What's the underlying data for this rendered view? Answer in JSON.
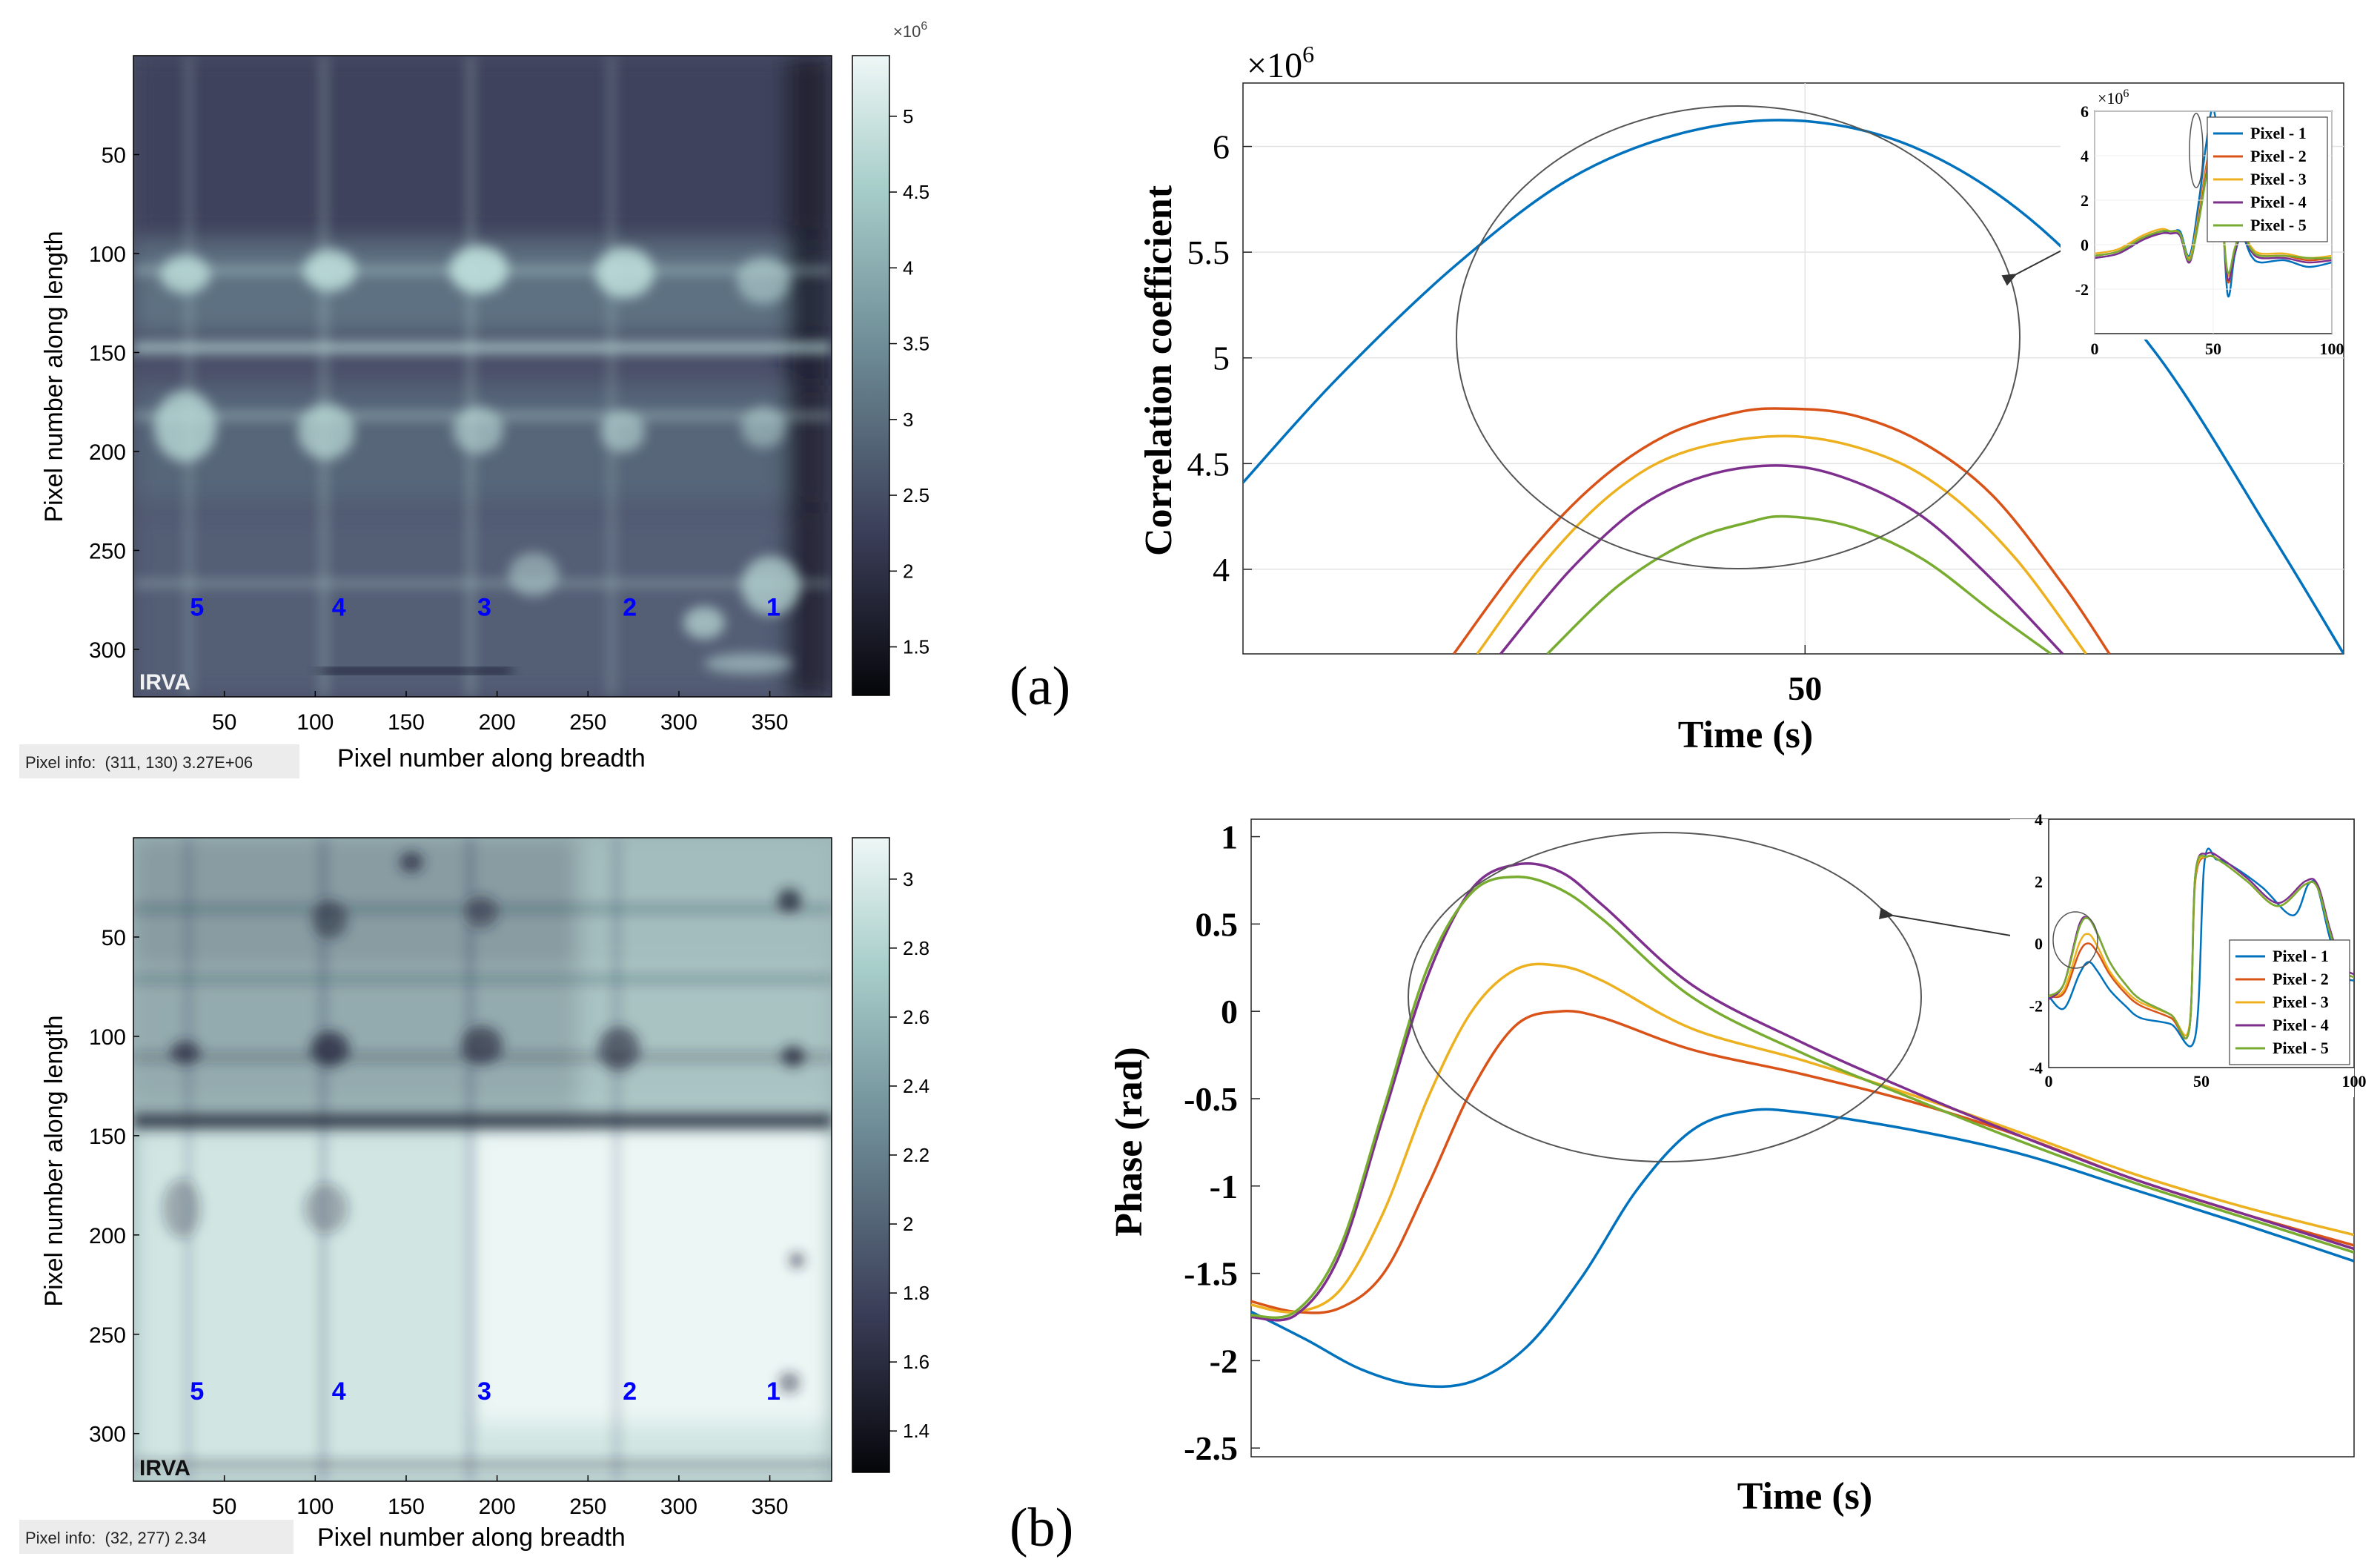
{
  "panel_labels": {
    "a": "(a)",
    "b": "(b)"
  },
  "colors": {
    "pixel1": "#0072BD",
    "pixel2": "#D95319",
    "pixel3": "#EDB120",
    "pixel4": "#7E2F8E",
    "pixel5": "#77AC30",
    "marker": "#0000FF"
  },
  "thermogram_a": {
    "ylabel": "Pixel number along length",
    "xlabel": "Pixel number along breadth",
    "yticks": [
      "50",
      "100",
      "150",
      "200",
      "250",
      "300"
    ],
    "xticks": [
      "50",
      "100",
      "150",
      "200",
      "250",
      "300",
      "350"
    ],
    "colorbar_exponent": "×10",
    "colorbar_exponent_power": "6",
    "colorbar_ticks": [
      "5",
      "4.5",
      "4",
      "3.5",
      "3",
      "2.5",
      "2",
      "1.5"
    ],
    "markers": [
      "5",
      "4",
      "3",
      "2",
      "1"
    ],
    "corner_label": "IRVA",
    "pixel_info_label": "Pixel info:",
    "pixel_info_value": "(311, 130)  3.27E+06"
  },
  "thermogram_b": {
    "ylabel": "Pixel number along length",
    "xlabel": "Pixel number along breadth",
    "yticks": [
      "50",
      "100",
      "150",
      "200",
      "250",
      "300"
    ],
    "xticks": [
      "50",
      "100",
      "150",
      "200",
      "250",
      "300",
      "350"
    ],
    "colorbar_ticks": [
      "3",
      "2.8",
      "2.6",
      "2.4",
      "2.2",
      "2",
      "1.8",
      "1.6",
      "1.4"
    ],
    "markers": [
      "5",
      "4",
      "3",
      "2",
      "1"
    ],
    "corner_label": "IRVA",
    "pixel_info_label": "Pixel info:",
    "pixel_info_value": "(32, 277)  2.34"
  },
  "chart_data": [
    {
      "type": "line",
      "panel": "a",
      "title": "",
      "xlabel": "Time (s)",
      "ylabel": "Correlation coefficient",
      "y_exponent": "×10",
      "y_exponent_power": "6",
      "xlim": [
        47.6,
        52.3
      ],
      "ylim": [
        3.6,
        6.3
      ],
      "xticks": [
        50
      ],
      "yticks": [
        4,
        4.5,
        5,
        5.5,
        6
      ],
      "ytick_labels": [
        "4",
        "4.5",
        "5",
        "5.5",
        "6"
      ],
      "grid": true,
      "series": [
        {
          "name": "Pixel - 1",
          "color_key": "pixel1",
          "x": [
            47.6,
            48.0,
            48.5,
            49.0,
            49.5,
            50.0,
            50.5,
            51.0,
            51.5,
            52.0,
            52.3
          ],
          "y": [
            4.41,
            4.9,
            5.43,
            5.85,
            6.07,
            6.12,
            5.98,
            5.62,
            5.02,
            4.15,
            3.6
          ]
        },
        {
          "name": "Pixel - 2",
          "color_key": "pixel2",
          "x": [
            48.5,
            48.8,
            49.1,
            49.4,
            49.7,
            49.92,
            50.2,
            50.5,
            50.8,
            51.1,
            51.3
          ],
          "y": [
            3.6,
            4.05,
            4.4,
            4.63,
            4.74,
            4.76,
            4.73,
            4.6,
            4.35,
            3.93,
            3.6
          ]
        },
        {
          "name": "Pixel - 3",
          "color_key": "pixel3",
          "x": [
            48.6,
            48.9,
            49.2,
            49.5,
            49.92,
            50.3,
            50.6,
            50.9,
            51.2
          ],
          "y": [
            3.6,
            4.05,
            4.38,
            4.56,
            4.63,
            4.55,
            4.37,
            4.05,
            3.6
          ]
        },
        {
          "name": "Pixel - 4",
          "color_key": "pixel4",
          "x": [
            48.7,
            49.0,
            49.3,
            49.6,
            49.92,
            50.2,
            50.5,
            50.8,
            51.1
          ],
          "y": [
            3.6,
            4.0,
            4.3,
            4.45,
            4.49,
            4.42,
            4.25,
            3.95,
            3.6
          ]
        },
        {
          "name": "Pixel - 5",
          "color_key": "pixel5",
          "x": [
            48.9,
            49.2,
            49.5,
            49.75,
            49.92,
            50.2,
            50.5,
            50.8,
            51.05
          ],
          "y": [
            3.6,
            3.92,
            4.13,
            4.22,
            4.25,
            4.2,
            4.05,
            3.8,
            3.6
          ]
        }
      ],
      "inset": {
        "y_exponent": "×10",
        "y_exponent_power": "6",
        "xlim": [
          0,
          100
        ],
        "ylim": [
          -4,
          6
        ],
        "xticks": [
          0,
          50,
          100
        ],
        "yticks": [
          -2,
          0,
          2,
          4,
          6
        ],
        "legend": [
          "Pixel - 1",
          "Pixel - 2",
          "Pixel - 3",
          "Pixel - 4",
          "Pixel - 5"
        ],
        "series": [
          {
            "x": [
              0,
              10,
              20,
              28,
              32,
              36,
              40,
              44,
              47,
              50,
              53,
              56,
              59,
              62,
              66,
              70,
              80,
              90,
              100
            ],
            "y": [
              -0.6,
              -0.4,
              0.2,
              0.6,
              0.5,
              0.6,
              -0.5,
              2.0,
              4.5,
              6.1,
              3.5,
              -2.2,
              -0.5,
              0.4,
              -0.5,
              -0.8,
              -0.7,
              -1.0,
              -0.8
            ]
          },
          {
            "x": [
              0,
              10,
              20,
              28,
              32,
              36,
              40,
              44,
              47,
              50,
              53,
              56,
              59,
              62,
              66,
              70,
              80,
              90,
              100
            ],
            "y": [
              -0.5,
              -0.3,
              0.3,
              0.6,
              0.6,
              0.5,
              -0.7,
              1.5,
              3.5,
              4.8,
              2.8,
              -1.6,
              -0.3,
              0.6,
              -0.2,
              -0.5,
              -0.5,
              -0.7,
              -0.6
            ]
          },
          {
            "x": [
              0,
              10,
              20,
              28,
              32,
              36,
              40,
              44,
              47,
              50,
              53,
              56,
              59,
              62,
              66,
              70,
              80,
              90,
              100
            ],
            "y": [
              -0.4,
              -0.2,
              0.4,
              0.7,
              0.6,
              0.5,
              -0.6,
              1.4,
              3.3,
              4.6,
              2.6,
              -1.3,
              -0.2,
              0.7,
              -0.1,
              -0.4,
              -0.4,
              -0.6,
              -0.5
            ]
          },
          {
            "x": [
              0,
              10,
              20,
              28,
              32,
              36,
              40,
              44,
              47,
              50,
              53,
              56,
              59,
              62,
              66,
              70,
              80,
              90,
              100
            ],
            "y": [
              -0.6,
              -0.4,
              0.2,
              0.5,
              0.5,
              0.4,
              -0.8,
              1.2,
              3.1,
              4.5,
              2.4,
              -1.5,
              -0.4,
              0.5,
              -0.3,
              -0.6,
              -0.6,
              -0.8,
              -0.7
            ]
          },
          {
            "x": [
              0,
              10,
              20,
              28,
              32,
              36,
              40,
              44,
              47,
              50,
              53,
              56,
              59,
              62,
              66,
              70,
              80,
              90,
              100
            ],
            "y": [
              -0.5,
              -0.3,
              0.3,
              0.6,
              0.6,
              0.5,
              -0.7,
              1.1,
              3.0,
              4.2,
              2.2,
              -1.2,
              -0.2,
              0.6,
              -0.2,
              -0.5,
              -0.5,
              -0.6,
              -0.6
            ]
          }
        ]
      }
    },
    {
      "type": "line",
      "panel": "b",
      "title": "",
      "xlabel": "Time (s)",
      "ylabel": "Phase (rad)",
      "xlim": [
        0,
        1
      ],
      "ylim": [
        -2.55,
        1.1
      ],
      "yticks": [
        -2.5,
        -2,
        -1.5,
        -1,
        -0.5,
        0,
        0.5,
        1
      ],
      "ytick_labels": [
        "-2.5",
        "-2",
        "-1.5",
        "-1",
        "-0.5",
        "0",
        "0.5",
        "1"
      ],
      "grid": false,
      "series": [
        {
          "name": "Pixel - 1",
          "color_key": "pixel1",
          "x": [
            0.0,
            0.05,
            0.1,
            0.15,
            0.2,
            0.25,
            0.3,
            0.35,
            0.4,
            0.45,
            0.5,
            0.6,
            0.7,
            0.8,
            0.9,
            1.0
          ],
          "y": [
            -1.72,
            -1.88,
            -2.05,
            -2.14,
            -2.12,
            -1.92,
            -1.52,
            -1.02,
            -0.68,
            -0.57,
            -0.58,
            -0.68,
            -0.82,
            -1.02,
            -1.22,
            -1.43
          ]
        },
        {
          "name": "Pixel - 2",
          "color_key": "pixel2",
          "x": [
            0.0,
            0.04,
            0.08,
            0.12,
            0.16,
            0.2,
            0.24,
            0.28,
            0.32,
            0.4,
            0.5,
            0.6,
            0.7,
            0.8,
            0.9,
            1.0
          ],
          "y": [
            -1.66,
            -1.72,
            -1.7,
            -1.5,
            -1.0,
            -0.45,
            -0.08,
            0.0,
            -0.04,
            -0.22,
            -0.36,
            -0.52,
            -0.72,
            -0.96,
            -1.16,
            -1.34
          ]
        },
        {
          "name": "Pixel - 3",
          "color_key": "pixel3",
          "x": [
            0.0,
            0.04,
            0.08,
            0.12,
            0.16,
            0.2,
            0.24,
            0.28,
            0.32,
            0.4,
            0.5,
            0.6,
            0.7,
            0.8,
            0.9,
            1.0
          ],
          "y": [
            -1.68,
            -1.72,
            -1.6,
            -1.15,
            -0.5,
            0.0,
            0.24,
            0.26,
            0.17,
            -0.1,
            -0.28,
            -0.48,
            -0.7,
            -0.93,
            -1.12,
            -1.28
          ]
        },
        {
          "name": "Pixel - 4",
          "color_key": "pixel4",
          "x": [
            0.0,
            0.04,
            0.08,
            0.12,
            0.16,
            0.2,
            0.24,
            0.28,
            0.32,
            0.4,
            0.5,
            0.6,
            0.7,
            0.8,
            0.9,
            1.0
          ],
          "y": [
            -1.75,
            -1.74,
            -1.4,
            -0.6,
            0.2,
            0.7,
            0.84,
            0.8,
            0.6,
            0.15,
            -0.18,
            -0.46,
            -0.72,
            -0.96,
            -1.16,
            -1.36
          ]
        },
        {
          "name": "Pixel - 5",
          "color_key": "pixel5",
          "x": [
            0.0,
            0.04,
            0.08,
            0.12,
            0.16,
            0.2,
            0.24,
            0.28,
            0.32,
            0.4,
            0.5,
            0.6,
            0.7,
            0.8,
            0.9,
            1.0
          ],
          "y": [
            -1.74,
            -1.72,
            -1.36,
            -0.56,
            0.25,
            0.68,
            0.77,
            0.7,
            0.52,
            0.08,
            -0.24,
            -0.5,
            -0.75,
            -0.98,
            -1.18,
            -1.38
          ]
        }
      ],
      "inset": {
        "xlim": [
          0,
          100
        ],
        "ylim": [
          -4,
          4
        ],
        "xticks": [
          0,
          50,
          100
        ],
        "yticks": [
          -4,
          -2,
          0,
          2,
          4
        ],
        "legend": [
          "Pixel - 1",
          "Pixel - 2",
          "Pixel - 3",
          "Pixel - 4",
          "Pixel - 5"
        ],
        "series": [
          {
            "x": [
              0,
              5,
              10,
              13,
              16,
              20,
              25,
              30,
              40,
              48,
              51,
              55,
              60,
              70,
              80,
              85,
              88,
              92,
              96,
              100
            ],
            "y": [
              -1.7,
              -2.1,
              -1.0,
              -0.6,
              -0.9,
              -1.5,
              -2.0,
              -2.4,
              -2.6,
              -3.0,
              2.6,
              2.7,
              2.5,
              1.8,
              0.9,
              1.9,
              1.8,
              0.2,
              -1.0,
              -1.2
            ]
          },
          {
            "x": [
              0,
              5,
              10,
              13,
              16,
              20,
              25,
              30,
              40,
              46,
              48,
              52,
              57,
              65,
              75,
              84,
              88,
              92,
              96,
              100
            ],
            "y": [
              -1.7,
              -1.6,
              -0.3,
              0.0,
              -0.3,
              -1.0,
              -1.6,
              -2.0,
              -2.4,
              -2.8,
              2.0,
              2.8,
              2.6,
              2.0,
              1.2,
              1.9,
              1.8,
              0.4,
              -0.8,
              -1.1
            ]
          },
          {
            "x": [
              0,
              5,
              10,
              13,
              16,
              20,
              25,
              30,
              40,
              46,
              48,
              52,
              57,
              65,
              75,
              84,
              88,
              92,
              96,
              100
            ],
            "y": [
              -1.7,
              -1.5,
              0.0,
              0.3,
              -0.1,
              -0.9,
              -1.5,
              -1.9,
              -2.3,
              -2.7,
              2.1,
              2.8,
              2.6,
              2.0,
              1.2,
              1.9,
              1.8,
              0.4,
              -0.8,
              -1.1
            ]
          },
          {
            "x": [
              0,
              5,
              10,
              13,
              16,
              20,
              25,
              30,
              40,
              46,
              48,
              52,
              57,
              65,
              75,
              84,
              88,
              92,
              96,
              100
            ],
            "y": [
              -1.8,
              -1.3,
              0.6,
              0.8,
              0.3,
              -0.6,
              -1.3,
              -1.8,
              -2.3,
              -2.8,
              2.2,
              2.9,
              2.7,
              2.1,
              1.3,
              2.0,
              1.9,
              0.5,
              -0.7,
              -1.0
            ]
          },
          {
            "x": [
              0,
              5,
              10,
              13,
              16,
              20,
              25,
              30,
              40,
              46,
              48,
              52,
              57,
              65,
              75,
              84,
              88,
              92,
              96,
              100
            ],
            "y": [
              -1.7,
              -1.3,
              0.5,
              0.8,
              0.3,
              -0.6,
              -1.3,
              -1.8,
              -2.3,
              -2.8,
              2.2,
              2.8,
              2.6,
              2.0,
              1.2,
              1.9,
              1.8,
              0.4,
              -0.8,
              -1.1
            ]
          }
        ]
      }
    }
  ]
}
